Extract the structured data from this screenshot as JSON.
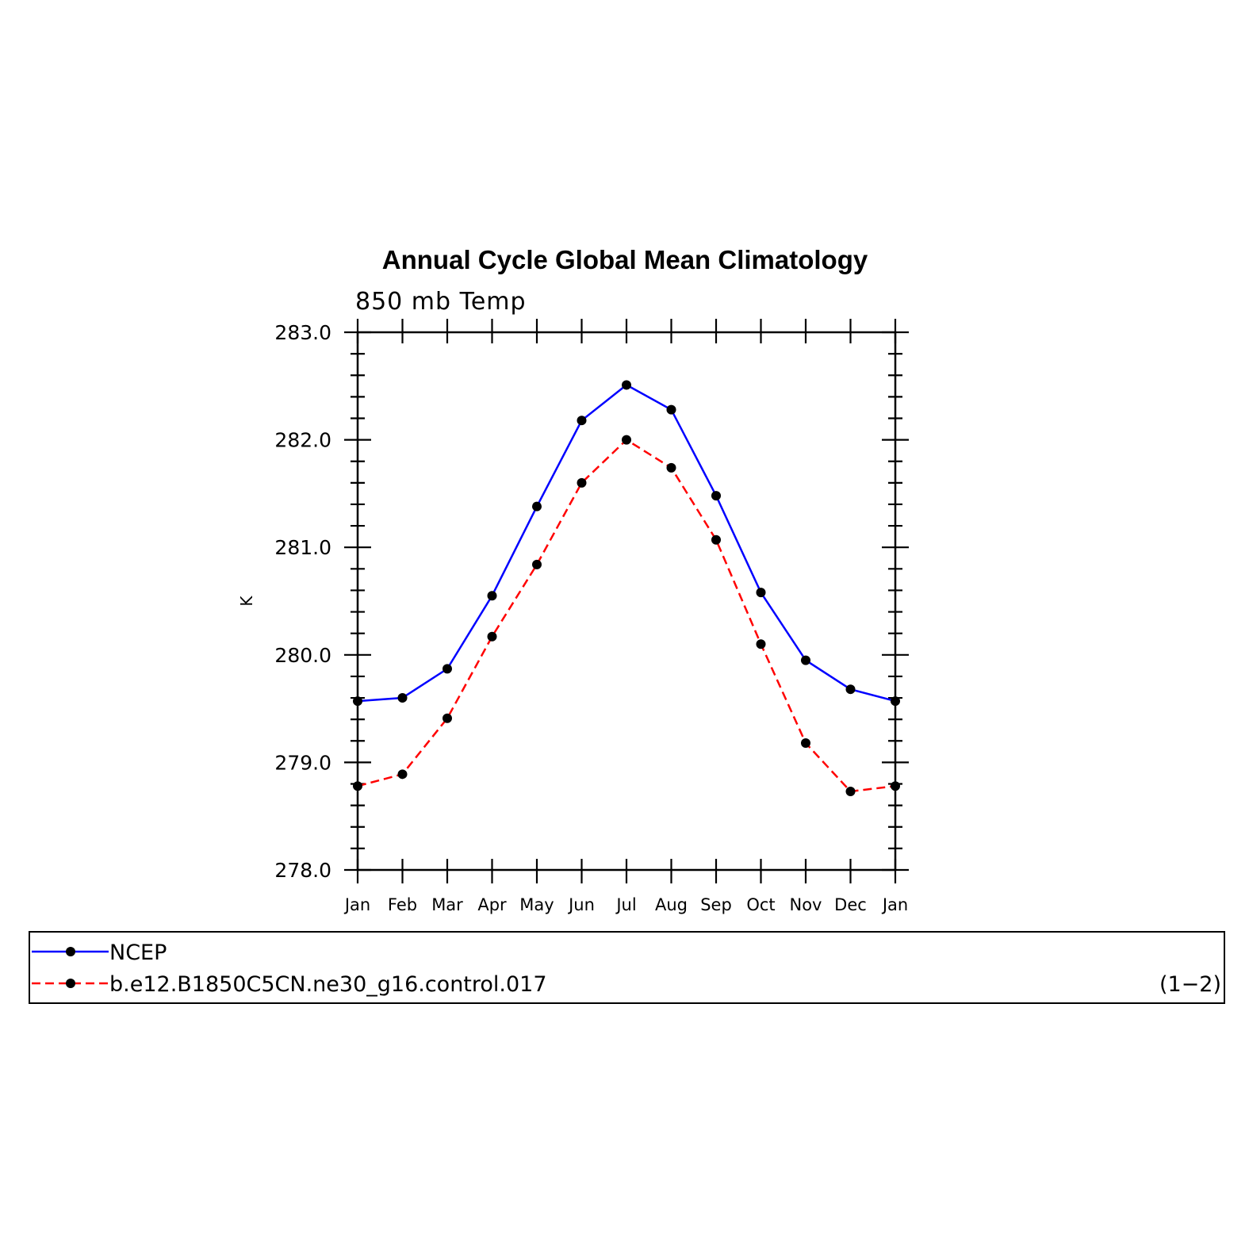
{
  "chart_data": {
    "type": "line",
    "title": "Annual Cycle Global Mean Climatology",
    "subtitle": "850 mb Temp",
    "ylabel": "K",
    "xlabel": "",
    "categories": [
      "Jan",
      "Feb",
      "Mar",
      "Apr",
      "May",
      "Jun",
      "Jul",
      "Aug",
      "Sep",
      "Oct",
      "Nov",
      "Dec",
      "Jan"
    ],
    "ylim": [
      278.0,
      283.0
    ],
    "yticks": [
      "278.0",
      "279.0",
      "280.0",
      "281.0",
      "282.0",
      "283.0"
    ],
    "grid": false,
    "legend_position": "bottom",
    "series": [
      {
        "name": "NCEP",
        "color": "#0000ff",
        "dash": "solid",
        "values": [
          279.57,
          279.6,
          279.87,
          280.55,
          281.38,
          282.18,
          282.51,
          282.28,
          281.48,
          280.58,
          279.95,
          279.68,
          279.57
        ]
      },
      {
        "name": "b.e12.B1850C5CN.ne30_g16.control.017",
        "color": "#ff0000",
        "dash": "dashed",
        "values": [
          278.78,
          278.89,
          279.41,
          280.17,
          280.84,
          281.6,
          282.0,
          281.74,
          281.07,
          280.1,
          279.18,
          278.73,
          278.78
        ]
      }
    ],
    "legend_note": "(1−2)"
  }
}
